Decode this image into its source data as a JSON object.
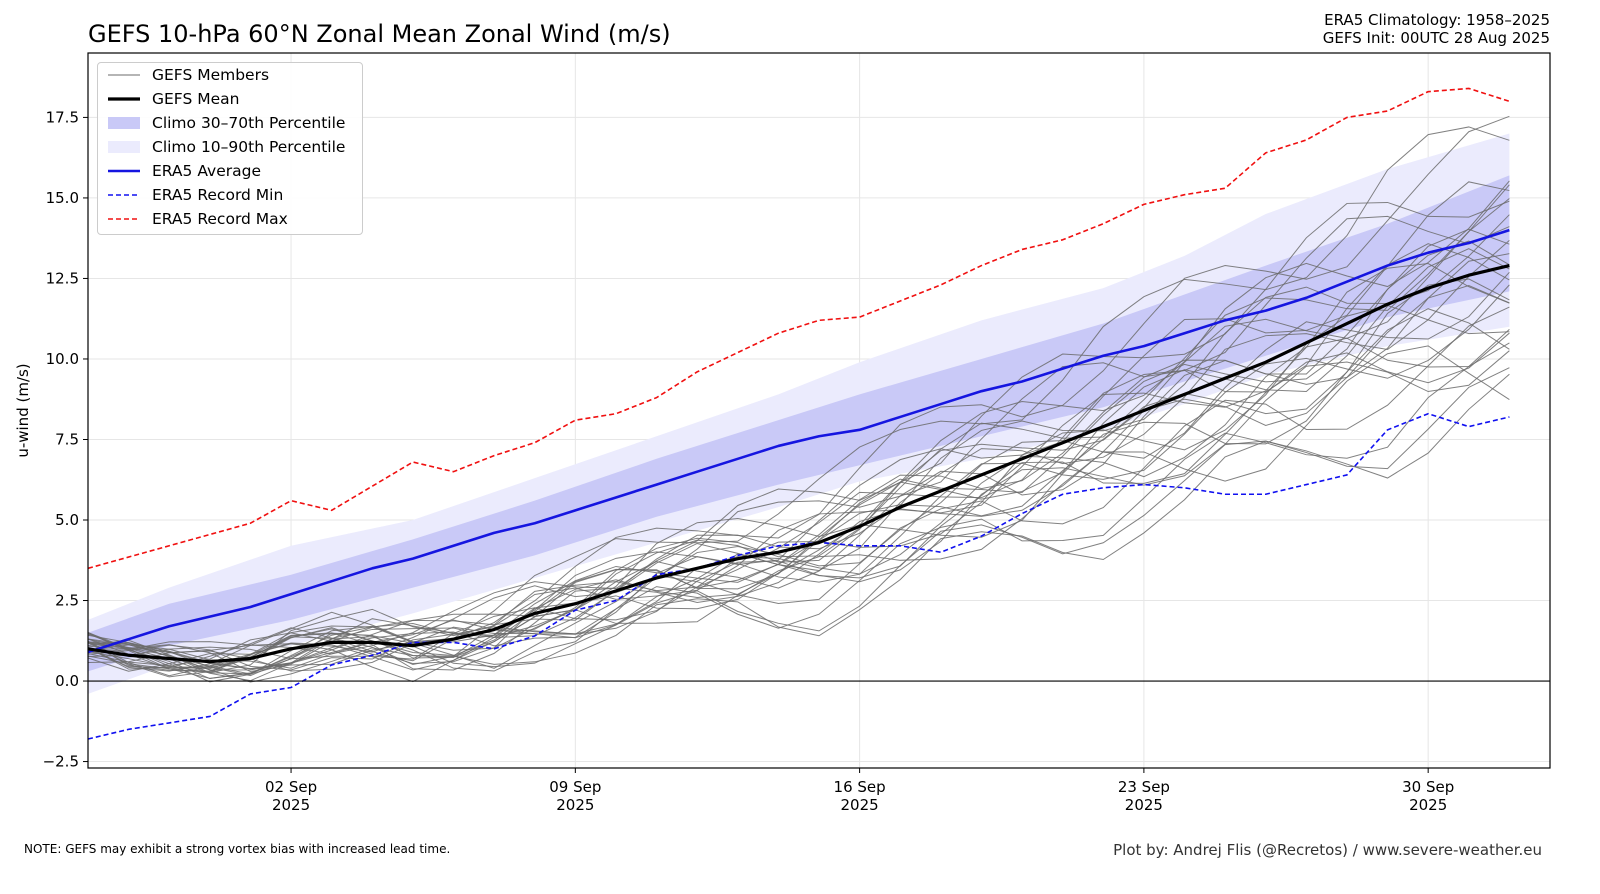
{
  "title": "GEFS 10-hPa 60°N Zonal Mean Zonal Wind (m/s)",
  "meta": {
    "climatology": "ERA5 Climatology: 1958–2025",
    "init": "GEFS Init: 00UTC 28 Aug 2025"
  },
  "footer": {
    "note": "NOTE: GEFS may exhibit a strong vortex bias with increased lead time.",
    "credit": "Plot by: Andrej Flis (@Recretos) / www.severe-weather.eu"
  },
  "chart_data": {
    "type": "line",
    "title": "GEFS 10-hPa 60°N Zonal Mean Zonal Wind (m/s)",
    "ylabel": "u-wind (m/s)",
    "xlabel": "",
    "x_start": "2025-08-28",
    "x_end": "2025-10-03",
    "ylim": [
      -2.7,
      19.5
    ],
    "yticks": [
      -2.5,
      0.0,
      2.5,
      5.0,
      7.5,
      10.0,
      12.5,
      15.0,
      17.5
    ],
    "ytick_labels": [
      "−2.5",
      "0.0",
      "2.5",
      "5.0",
      "7.5",
      "10.0",
      "12.5",
      "15.0",
      "17.5"
    ],
    "xticks": [
      {
        "date": "2025-09-02",
        "label1": "02 Sep",
        "label2": "2025"
      },
      {
        "date": "2025-09-09",
        "label1": "09 Sep",
        "label2": "2025"
      },
      {
        "date": "2025-09-16",
        "label1": "16 Sep",
        "label2": "2025"
      },
      {
        "date": "2025-09-23",
        "label1": "23 Sep",
        "label2": "2025"
      },
      {
        "date": "2025-09-30",
        "label1": "30 Sep",
        "label2": "2025"
      }
    ],
    "grid": true,
    "zero_line": true,
    "legend_position": "top-left",
    "legend": [
      {
        "label": "GEFS Members",
        "style": "thin-gray"
      },
      {
        "label": "GEFS Mean",
        "style": "thick-black"
      },
      {
        "label": "Climo 30–70th Percentile",
        "style": "fill-dark"
      },
      {
        "label": "Climo 10–90th Percentile",
        "style": "fill-light"
      },
      {
        "label": "ERA5 Average",
        "style": "blue-line"
      },
      {
        "label": "ERA5 Record Min",
        "style": "blue-dash"
      },
      {
        "label": "ERA5 Record Max",
        "style": "red-dash"
      }
    ],
    "colors": {
      "members": "#6b6b6b",
      "mean": "#000000",
      "avg": "#1515e0",
      "record_min": "#1010f0",
      "record_max": "#f01010",
      "band_30_70": "#c9c9f7",
      "band_10_90": "#ebebfd"
    },
    "series": [
      {
        "name": "ERA5 Record Max",
        "points": [
          [
            "2025-08-28",
            3.5
          ],
          [
            "2025-08-30",
            4.2
          ],
          [
            "2025-09-01",
            4.9
          ],
          [
            "2025-09-02",
            5.6
          ],
          [
            "2025-09-03",
            5.3
          ],
          [
            "2025-09-05",
            6.8
          ],
          [
            "2025-09-06",
            6.5
          ],
          [
            "2025-09-07",
            7.0
          ],
          [
            "2025-09-08",
            7.4
          ],
          [
            "2025-09-09",
            8.1
          ],
          [
            "2025-09-10",
            8.3
          ],
          [
            "2025-09-11",
            8.8
          ],
          [
            "2025-09-12",
            9.6
          ],
          [
            "2025-09-13",
            10.2
          ],
          [
            "2025-09-14",
            10.8
          ],
          [
            "2025-09-15",
            11.2
          ],
          [
            "2025-09-16",
            11.3
          ],
          [
            "2025-09-17",
            11.8
          ],
          [
            "2025-09-18",
            12.3
          ],
          [
            "2025-09-19",
            12.9
          ],
          [
            "2025-09-20",
            13.4
          ],
          [
            "2025-09-21",
            13.7
          ],
          [
            "2025-09-22",
            14.2
          ],
          [
            "2025-09-23",
            14.8
          ],
          [
            "2025-09-24",
            15.1
          ],
          [
            "2025-09-25",
            15.3
          ],
          [
            "2025-09-26",
            16.4
          ],
          [
            "2025-09-27",
            16.8
          ],
          [
            "2025-09-28",
            17.5
          ],
          [
            "2025-09-29",
            17.7
          ],
          [
            "2025-09-30",
            18.3
          ],
          [
            "2025-10-01",
            18.4
          ],
          [
            "2025-10-02",
            18.0
          ]
        ]
      },
      {
        "name": "ERA5 Record Min",
        "points": [
          [
            "2025-08-28",
            -1.8
          ],
          [
            "2025-08-29",
            -1.5
          ],
          [
            "2025-08-30",
            -1.3
          ],
          [
            "2025-08-31",
            -1.1
          ],
          [
            "2025-09-01",
            -0.4
          ],
          [
            "2025-09-02",
            -0.2
          ],
          [
            "2025-09-03",
            0.5
          ],
          [
            "2025-09-04",
            0.8
          ],
          [
            "2025-09-05",
            1.2
          ],
          [
            "2025-09-06",
            1.2
          ],
          [
            "2025-09-07",
            1.0
          ],
          [
            "2025-09-08",
            1.4
          ],
          [
            "2025-09-09",
            2.2
          ],
          [
            "2025-09-10",
            2.5
          ],
          [
            "2025-09-11",
            3.3
          ],
          [
            "2025-09-12",
            3.5
          ],
          [
            "2025-09-13",
            3.9
          ],
          [
            "2025-09-14",
            4.2
          ],
          [
            "2025-09-15",
            4.3
          ],
          [
            "2025-09-16",
            4.2
          ],
          [
            "2025-09-17",
            4.2
          ],
          [
            "2025-09-18",
            4.0
          ],
          [
            "2025-09-19",
            4.5
          ],
          [
            "2025-09-20",
            5.2
          ],
          [
            "2025-09-21",
            5.8
          ],
          [
            "2025-09-22",
            6.0
          ],
          [
            "2025-09-23",
            6.1
          ],
          [
            "2025-09-24",
            6.0
          ],
          [
            "2025-09-25",
            5.8
          ],
          [
            "2025-09-26",
            5.8
          ],
          [
            "2025-09-27",
            6.1
          ],
          [
            "2025-09-28",
            6.4
          ],
          [
            "2025-09-29",
            7.8
          ],
          [
            "2025-09-30",
            8.3
          ],
          [
            "2025-10-01",
            7.9
          ],
          [
            "2025-10-02",
            8.2
          ]
        ]
      },
      {
        "name": "ERA5 Average",
        "points": [
          [
            "2025-08-28",
            0.9
          ],
          [
            "2025-08-30",
            1.7
          ],
          [
            "2025-09-01",
            2.3
          ],
          [
            "2025-09-02",
            2.7
          ],
          [
            "2025-09-03",
            3.1
          ],
          [
            "2025-09-04",
            3.5
          ],
          [
            "2025-09-05",
            3.8
          ],
          [
            "2025-09-06",
            4.2
          ],
          [
            "2025-09-07",
            4.6
          ],
          [
            "2025-09-08",
            4.9
          ],
          [
            "2025-09-09",
            5.3
          ],
          [
            "2025-09-10",
            5.7
          ],
          [
            "2025-09-11",
            6.1
          ],
          [
            "2025-09-12",
            6.5
          ],
          [
            "2025-09-13",
            6.9
          ],
          [
            "2025-09-14",
            7.3
          ],
          [
            "2025-09-15",
            7.6
          ],
          [
            "2025-09-16",
            7.8
          ],
          [
            "2025-09-17",
            8.2
          ],
          [
            "2025-09-18",
            8.6
          ],
          [
            "2025-09-19",
            9.0
          ],
          [
            "2025-09-20",
            9.3
          ],
          [
            "2025-09-21",
            9.7
          ],
          [
            "2025-09-22",
            10.1
          ],
          [
            "2025-09-23",
            10.4
          ],
          [
            "2025-09-24",
            10.8
          ],
          [
            "2025-09-25",
            11.2
          ],
          [
            "2025-09-26",
            11.5
          ],
          [
            "2025-09-27",
            11.9
          ],
          [
            "2025-09-28",
            12.4
          ],
          [
            "2025-09-29",
            12.9
          ],
          [
            "2025-09-30",
            13.3
          ],
          [
            "2025-10-01",
            13.6
          ],
          [
            "2025-10-02",
            14.0
          ]
        ]
      },
      {
        "name": "GEFS Mean",
        "points": [
          [
            "2025-08-28",
            1.0
          ],
          [
            "2025-08-29",
            0.8
          ],
          [
            "2025-08-30",
            0.7
          ],
          [
            "2025-08-31",
            0.6
          ],
          [
            "2025-09-01",
            0.7
          ],
          [
            "2025-09-02",
            1.0
          ],
          [
            "2025-09-03",
            1.2
          ],
          [
            "2025-09-04",
            1.2
          ],
          [
            "2025-09-05",
            1.1
          ],
          [
            "2025-09-06",
            1.3
          ],
          [
            "2025-09-07",
            1.6
          ],
          [
            "2025-09-08",
            2.1
          ],
          [
            "2025-09-09",
            2.4
          ],
          [
            "2025-09-10",
            2.8
          ],
          [
            "2025-09-11",
            3.2
          ],
          [
            "2025-09-12",
            3.5
          ],
          [
            "2025-09-13",
            3.8
          ],
          [
            "2025-09-14",
            4.0
          ],
          [
            "2025-09-15",
            4.3
          ],
          [
            "2025-09-16",
            4.8
          ],
          [
            "2025-09-17",
            5.4
          ],
          [
            "2025-09-18",
            5.9
          ],
          [
            "2025-09-19",
            6.4
          ],
          [
            "2025-09-20",
            6.9
          ],
          [
            "2025-09-21",
            7.4
          ],
          [
            "2025-09-22",
            7.9
          ],
          [
            "2025-09-23",
            8.4
          ],
          [
            "2025-09-24",
            8.9
          ],
          [
            "2025-09-25",
            9.4
          ],
          [
            "2025-09-26",
            9.9
          ],
          [
            "2025-09-27",
            10.5
          ],
          [
            "2025-09-28",
            11.1
          ],
          [
            "2025-09-29",
            11.7
          ],
          [
            "2025-09-30",
            12.2
          ],
          [
            "2025-10-01",
            12.6
          ],
          [
            "2025-10-02",
            12.9
          ]
        ]
      }
    ],
    "bands": [
      {
        "name": "Climo 10–90th Percentile",
        "points": [
          [
            "2025-08-28",
            -0.4,
            1.9
          ],
          [
            "2025-08-30",
            0.5,
            2.9
          ],
          [
            "2025-09-02",
            1.1,
            4.2
          ],
          [
            "2025-09-05",
            2.1,
            5.0
          ],
          [
            "2025-09-08",
            3.2,
            6.3
          ],
          [
            "2025-09-11",
            4.3,
            7.6
          ],
          [
            "2025-09-14",
            5.4,
            8.9
          ],
          [
            "2025-09-16",
            6.2,
            9.9
          ],
          [
            "2025-09-19",
            6.9,
            11.2
          ],
          [
            "2025-09-22",
            7.8,
            12.2
          ],
          [
            "2025-09-24",
            8.6,
            13.2
          ],
          [
            "2025-09-26",
            9.5,
            14.5
          ],
          [
            "2025-09-29",
            10.4,
            15.9
          ],
          [
            "2025-10-02",
            11.0,
            17.0
          ]
        ]
      },
      {
        "name": "Climo 30–70th Percentile",
        "points": [
          [
            "2025-08-28",
            0.3,
            1.5
          ],
          [
            "2025-08-30",
            1.1,
            2.4
          ],
          [
            "2025-09-02",
            1.9,
            3.3
          ],
          [
            "2025-09-05",
            2.9,
            4.4
          ],
          [
            "2025-09-08",
            3.9,
            5.6
          ],
          [
            "2025-09-11",
            5.1,
            6.9
          ],
          [
            "2025-09-14",
            6.1,
            8.1
          ],
          [
            "2025-09-16",
            6.7,
            8.9
          ],
          [
            "2025-09-19",
            7.6,
            10.0
          ],
          [
            "2025-09-22",
            8.5,
            11.1
          ],
          [
            "2025-09-24",
            9.3,
            12.0
          ],
          [
            "2025-09-26",
            10.1,
            12.9
          ],
          [
            "2025-09-29",
            11.3,
            14.2
          ],
          [
            "2025-10-02",
            12.1,
            15.7
          ]
        ]
      }
    ],
    "members_end_values": [
      16.8,
      16.4,
      15.9,
      15.2,
      14.8,
      14.5,
      13.9,
      13.6,
      13.3,
      13.0,
      12.8,
      12.6,
      12.4,
      12.2,
      12.0,
      11.8,
      11.6,
      11.3,
      11.0,
      10.7,
      10.4,
      10.0,
      9.2,
      8.6,
      8.3,
      12.9,
      14.1,
      11.5,
      10.9,
      13.2
    ]
  }
}
